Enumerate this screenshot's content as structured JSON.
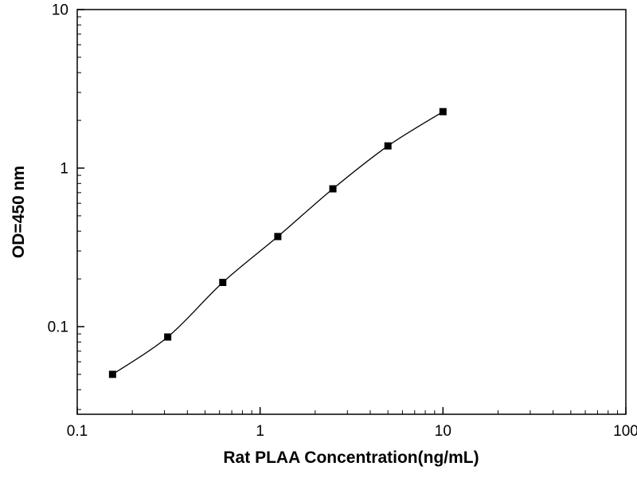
{
  "figure": {
    "background_color": "#ffffff",
    "frame_color": "#000000"
  },
  "chart_data": {
    "type": "line",
    "title": "",
    "xlabel": "Rat PLAA Concentration(ng/mL)",
    "ylabel": "OD=450 nm",
    "x_scale": "log",
    "y_scale": "log",
    "xlim": [
      0.1,
      100
    ],
    "ylim": [
      0.028,
      10
    ],
    "x_ticks": [
      0.1,
      1,
      10,
      100
    ],
    "x_tick_labels": [
      "0.1",
      "1",
      "10",
      "100"
    ],
    "y_ticks": [
      0.1,
      1,
      10
    ],
    "y_tick_labels": [
      "0.1",
      "1",
      "10"
    ],
    "minor_ticks": true,
    "grid": false,
    "legend": null,
    "series": [
      {
        "marker": "filled-square",
        "marker_color": "#000000",
        "line_color": "#000000",
        "x": [
          0.156,
          0.3125,
          0.625,
          1.25,
          2.5,
          5,
          10
        ],
        "y": [
          0.05,
          0.086,
          0.19,
          0.37,
          0.74,
          1.38,
          2.27
        ]
      }
    ]
  }
}
